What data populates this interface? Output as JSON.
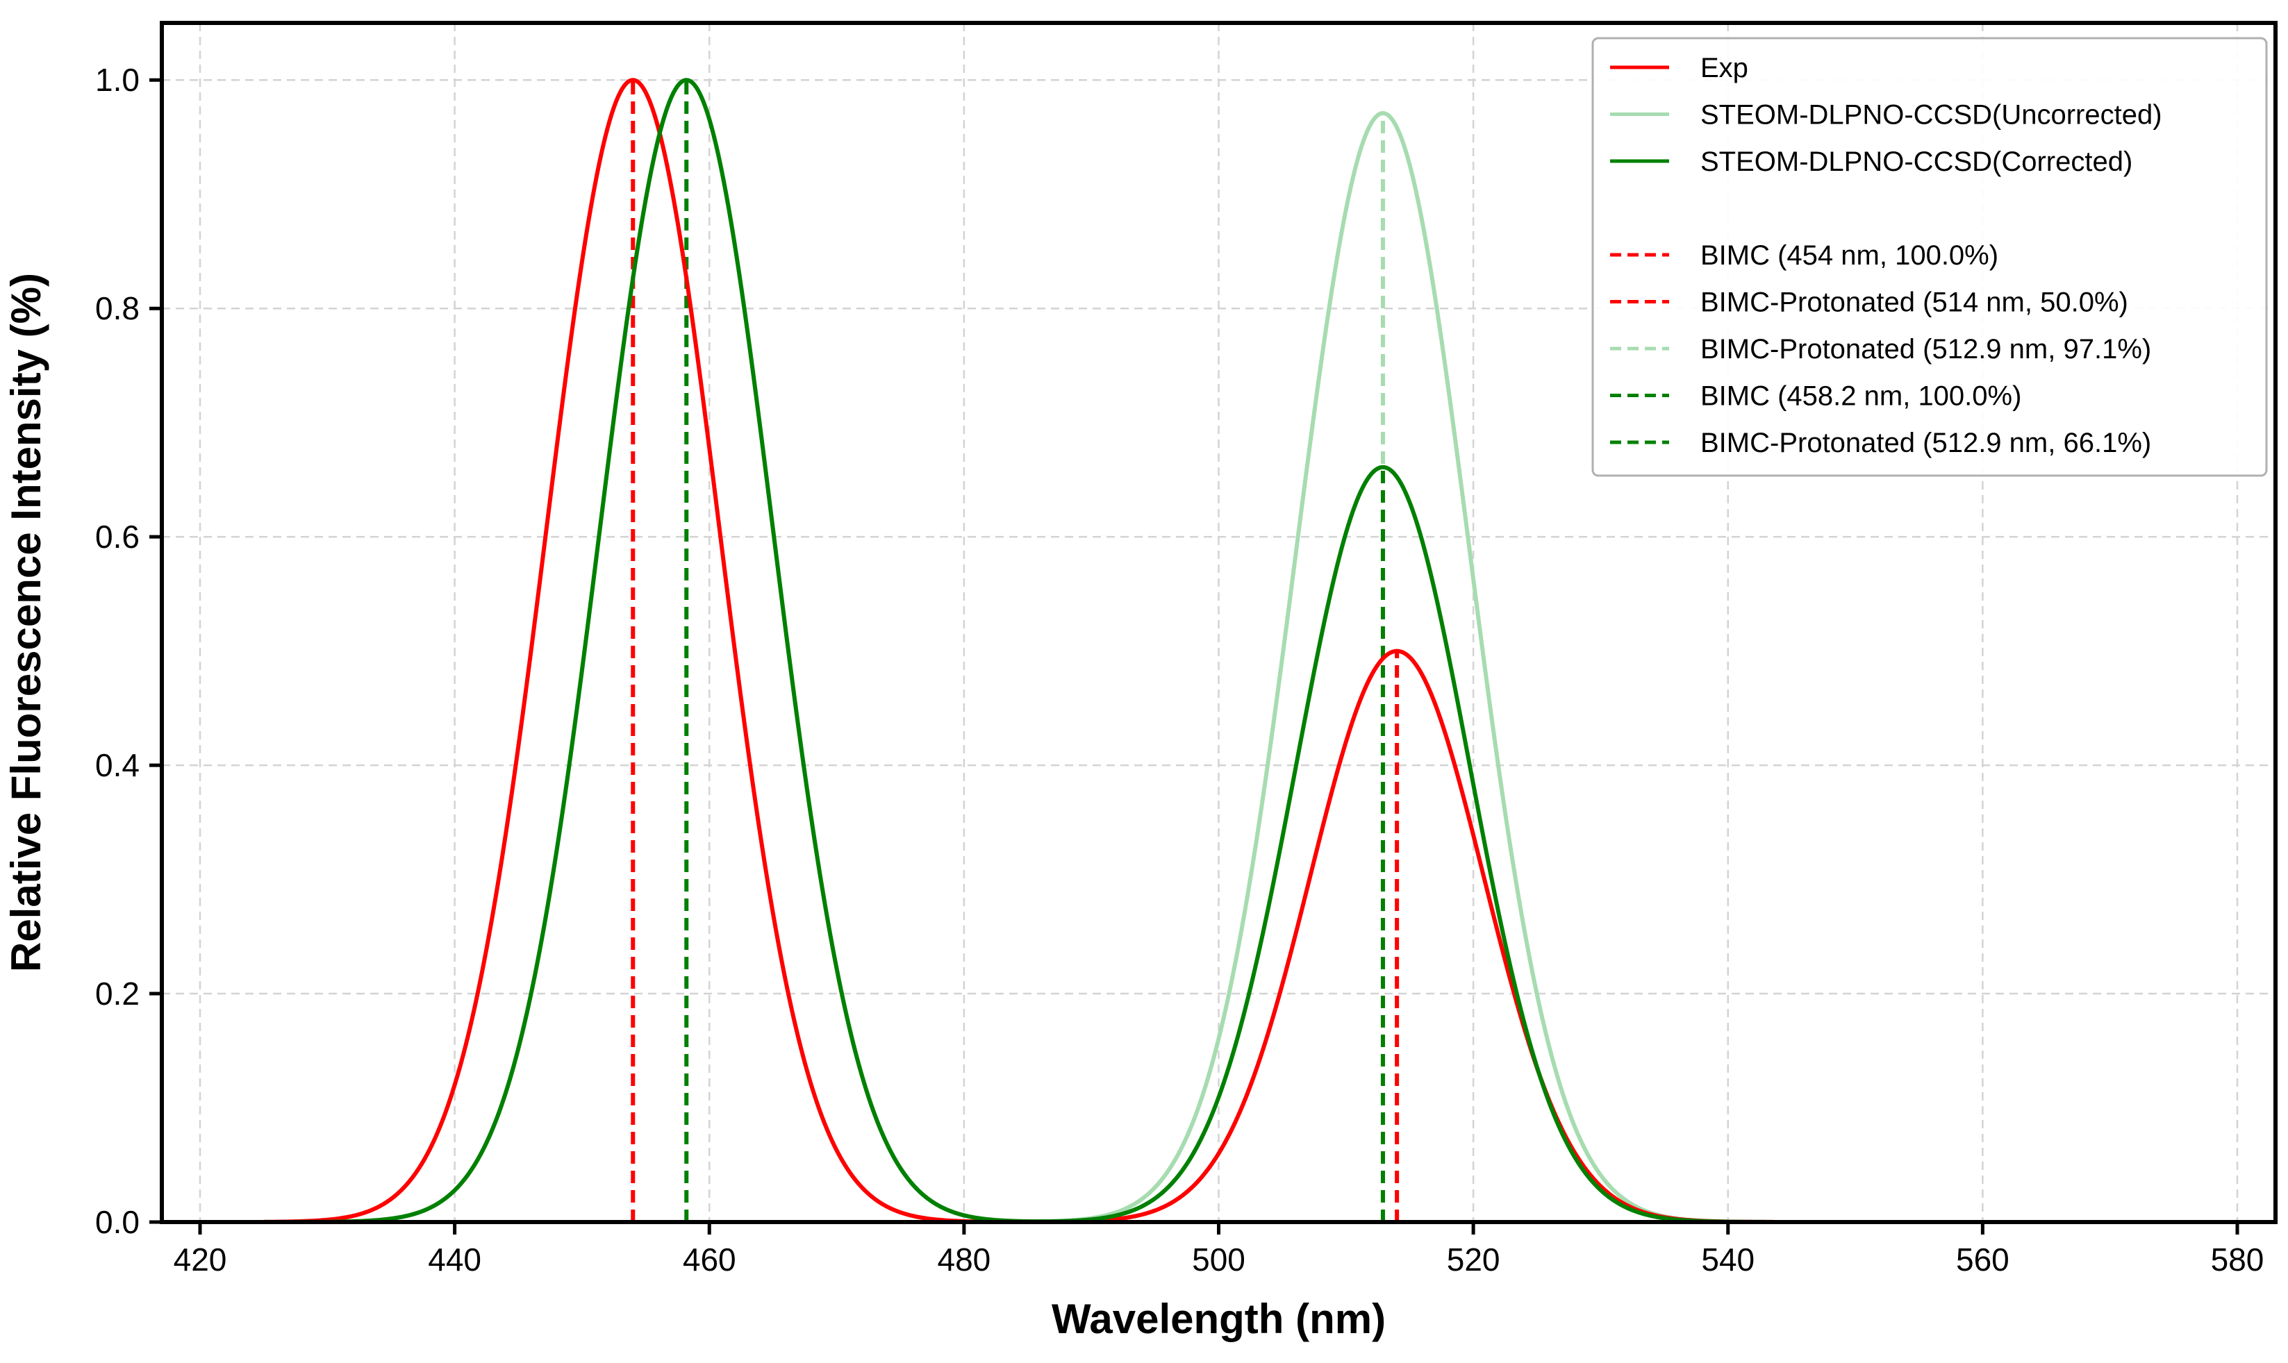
{
  "chart_data": {
    "type": "line",
    "title": "",
    "xlabel": "Wavelength (nm)",
    "ylabel": "Relative Fluorescence Intensity (%)",
    "xlim": [
      417,
      583
    ],
    "ylim": [
      0,
      1.05
    ],
    "xticks": [
      420,
      440,
      460,
      480,
      500,
      520,
      540,
      560,
      580
    ],
    "yticks": [
      0.0,
      0.2,
      0.4,
      0.6,
      0.8,
      1.0
    ],
    "xtick_labels": [
      "420",
      "440",
      "460",
      "480",
      "500",
      "520",
      "540",
      "560",
      "580"
    ],
    "ytick_labels": [
      "0.0",
      "0.2",
      "0.4",
      "0.6",
      "0.8",
      "1.0"
    ],
    "grid": true,
    "x_range_curves": [
      425,
      575
    ],
    "legend_position": "top-right",
    "series": [
      {
        "name": "Exp",
        "color": "#ff0000",
        "style": "solid",
        "peaks": [
          {
            "center": 454,
            "amplitude": 1.0,
            "sigma": 6.8
          },
          {
            "center": 514,
            "amplitude": 0.5,
            "sigma": 6.8
          }
        ]
      },
      {
        "name": "STEOM-DLPNO-CCSD(Uncorrected)",
        "color": "#a6dcb0",
        "style": "solid",
        "peaks": [
          {
            "center": 458.2,
            "amplitude": 1.0,
            "sigma": 6.8
          },
          {
            "center": 512.9,
            "amplitude": 0.971,
            "sigma": 6.8
          }
        ]
      },
      {
        "name": "STEOM-DLPNO-CCSD(Corrected)",
        "color": "#008000",
        "style": "solid",
        "peaks": [
          {
            "center": 458.2,
            "amplitude": 1.0,
            "sigma": 6.8
          },
          {
            "center": 512.9,
            "amplitude": 0.661,
            "sigma": 6.8
          }
        ]
      }
    ],
    "markers": [
      {
        "label": "BIMC (454 nm, 100.0%)",
        "x": 454,
        "y": 1.0,
        "color": "#ff0000"
      },
      {
        "label": "BIMC-Protonated (514 nm, 50.0%)",
        "x": 514,
        "y": 0.5,
        "color": "#ff0000"
      },
      {
        "label": "BIMC-Protonated (512.9 nm, 97.1%)",
        "x": 512.9,
        "y": 0.971,
        "color": "#a6dcb0"
      },
      {
        "label": "BIMC (458.2 nm, 100.0%)",
        "x": 458.2,
        "y": 1.0,
        "color": "#008000"
      },
      {
        "label": "BIMC-Protonated (512.9 nm, 66.1%)",
        "x": 512.9,
        "y": 0.661,
        "color": "#008000"
      }
    ]
  }
}
